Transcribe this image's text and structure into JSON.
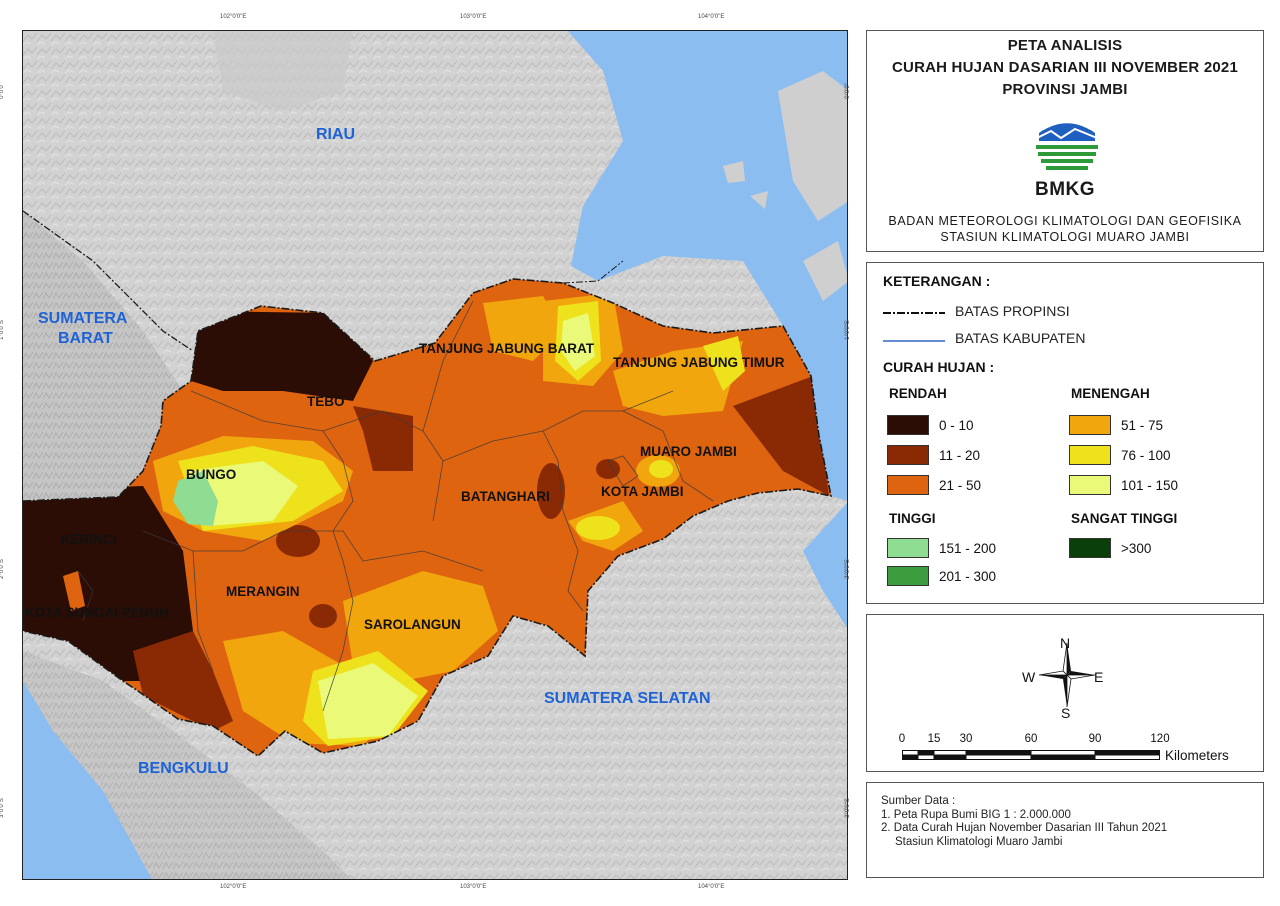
{
  "map": {
    "regions": [
      {
        "name": "RIAU"
      },
      {
        "name": "SUMATERA\nBARAT"
      },
      {
        "name": "SUMATERA SELATAN"
      },
      {
        "name": "BENGKULU"
      }
    ],
    "districts": [
      "TANJUNG JABUNG BARAT",
      "TANJUNG JABUNG TIMUR",
      "TEBO",
      "BUNGO",
      "MUARO JAMBI",
      "BATANGHARI",
      "KOTA JAMBI",
      "KERINCI",
      "KOTA SUNGAI PENUH",
      "MERANGIN",
      "SAROLANGUN"
    ],
    "longitude_ticks": [
      "102°0'0\"E",
      "103°0'0\"E",
      "104°0'0\"E"
    ],
    "latitude_ticks": [
      "0°0'0\"",
      "1°0'0\"S",
      "2°0'0\"S",
      "3°0'0\"S"
    ]
  },
  "title": {
    "line1": "PETA ANALISIS",
    "line2": "CURAH HUJAN DASARIAN III NOVEMBER  2021",
    "line3": "PROVINSI JAMBI",
    "logo_text": "BMKG",
    "agency_line1": "BADAN METEOROLOGI KLIMATOLOGI DAN GEOFISIKA",
    "agency_line2": "STASIUN KLIMATOLOGI MUARO JAMBI"
  },
  "legend": {
    "heading": "KETERANGAN :",
    "lines": [
      {
        "label": "BATAS PROPINSI"
      },
      {
        "label": "BATAS KABUPATEN"
      }
    ],
    "rain_heading": "CURAH HUJAN :",
    "groups": [
      {
        "title": "RENDAH",
        "items": [
          {
            "label": "0 - 10",
            "color": "#2b0d05"
          },
          {
            "label": "11 - 20",
            "color": "#8a2a05"
          },
          {
            "label": "21 - 50",
            "color": "#de6410"
          }
        ]
      },
      {
        "title": "MENENGAH",
        "items": [
          {
            "label": "51 - 75",
            "color": "#f1a60d"
          },
          {
            "label": "76 - 100",
            "color": "#ede21c"
          },
          {
            "label": "101 - 150",
            "color": "#eafa78"
          }
        ]
      },
      {
        "title": "TINGGI",
        "items": [
          {
            "label": "151 - 200",
            "color": "#8fdc93"
          },
          {
            "label": "201 - 300",
            "color": "#3c9c3e"
          }
        ]
      },
      {
        "title": "SANGAT TINGGI",
        "items": [
          {
            "label": ">300",
            "color": "#0a3f0a"
          }
        ]
      }
    ]
  },
  "compass": {
    "n": "N",
    "s": "S",
    "e": "E",
    "w": "W"
  },
  "scale": {
    "ticks": [
      "0",
      "15",
      "30",
      "60",
      "90",
      "120"
    ],
    "unit": "Kilometers"
  },
  "source": {
    "heading": "Sumber Data :",
    "line1": "1. Peta Rupa Bumi BIG 1 : 2.000.000",
    "line2": "2. Data Curah Hujan November Dasarian III Tahun 2021",
    "line3": "Stasiun Klimatologi Muaro Jambi"
  },
  "colors": {
    "sea": "#8bbdf0",
    "land": "#cfcfcf",
    "region_label": "#1e63d6"
  }
}
